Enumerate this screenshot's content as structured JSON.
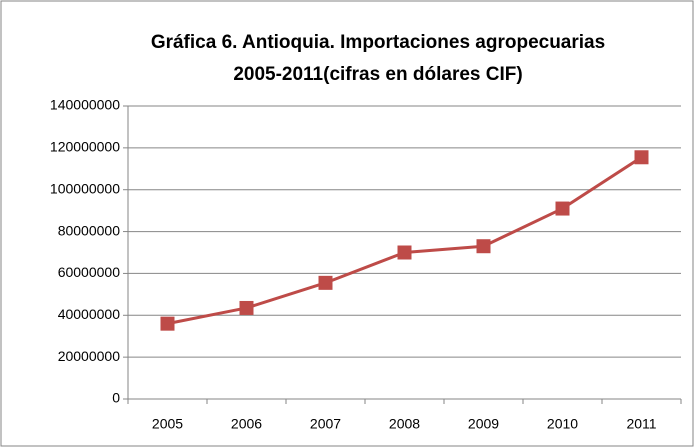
{
  "chart_data": {
    "type": "line",
    "title": [
      "Gráfica 6. Antioquia. Importaciones  agropecuarias",
      "2005-2011(cifras en dólares CIF)"
    ],
    "categories": [
      "2005",
      "2006",
      "2007",
      "2008",
      "2009",
      "2010",
      "2011"
    ],
    "values": [
      36000000,
      43500000,
      55500000,
      70000000,
      73000000,
      91000000,
      115500000
    ],
    "color": "#be4b48",
    "ylim": [
      0,
      140000000
    ],
    "yticks": [
      0,
      20000000,
      40000000,
      60000000,
      80000000,
      100000000,
      120000000,
      140000000
    ],
    "grid": true
  }
}
